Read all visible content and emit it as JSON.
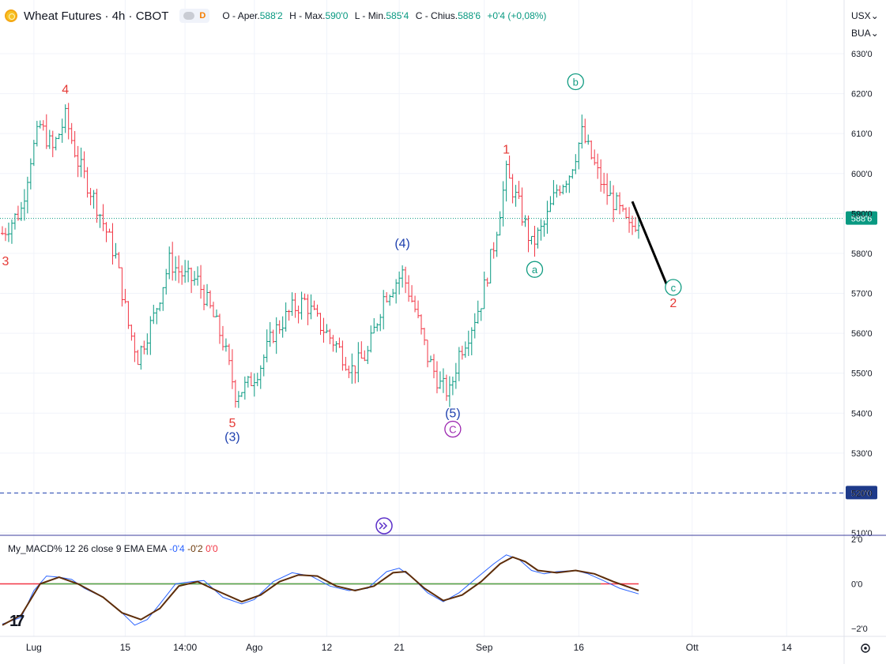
{
  "header": {
    "title": "Wheat Futures · 4h · CBOT",
    "badge": "D",
    "o_label": "O",
    "o_prefix": "Aper.",
    "o_value": "588'2",
    "h_label": "H",
    "h_prefix": "Max.",
    "h_value": "590'0",
    "l_label": "L",
    "l_prefix": "Min.",
    "l_value": "585'4",
    "c_label": "C",
    "c_prefix": "Chius.",
    "c_value": "588'6",
    "change": "+0'4 (+0,08%)"
  },
  "currency": {
    "unit": "USX",
    "unit2": "BUA"
  },
  "indicator": {
    "name": "My_MACD% 12 26 close 9 EMA EMA",
    "v1": "-0'4",
    "v2": "-0'2",
    "v3": "0'0"
  },
  "logo": "17",
  "colors": {
    "up": "#089981",
    "down": "#f23645",
    "wave_red": "#e53935",
    "wave_blue": "#1e40af",
    "wave_teal": "#119c82",
    "wave_purple": "#9c27b0",
    "macd": "#2962ff",
    "signal": "#5d2d0a"
  },
  "chart_data": [
    {
      "type": "ohlc",
      "price_axis": {
        "ticks": [
          "630'0",
          "620'0",
          "610'0",
          "600'0",
          "590'0",
          "580'0",
          "570'0",
          "560'0",
          "550'0",
          "540'0",
          "530'0",
          "520'0",
          "510'0"
        ],
        "min": 510,
        "max": 630
      },
      "x_axis": {
        "labels": [
          "Lug",
          "15",
          "14:00",
          "Ago",
          "12",
          "21",
          "Sep",
          "16",
          "Ott",
          "14"
        ],
        "bar_index": [
          10,
          39,
          58,
          80,
          103,
          126,
          153,
          183,
          219,
          249
        ]
      },
      "last_price": {
        "value": 588.75,
        "label": "588'6"
      },
      "alert_line": {
        "value": 520,
        "label": "520'0"
      },
      "close_path": [
        {
          "i": 0,
          "c": 585
        },
        {
          "i": 6,
          "c": 591
        },
        {
          "i": 9,
          "c": 604
        },
        {
          "i": 12,
          "c": 612
        },
        {
          "i": 16,
          "c": 606
        },
        {
          "i": 20,
          "c": 614
        },
        {
          "i": 24,
          "c": 603
        },
        {
          "i": 30,
          "c": 592
        },
        {
          "i": 36,
          "c": 579
        },
        {
          "i": 40,
          "c": 562
        },
        {
          "i": 43,
          "c": 554
        },
        {
          "i": 48,
          "c": 564
        },
        {
          "i": 53,
          "c": 578
        },
        {
          "i": 58,
          "c": 574
        },
        {
          "i": 62,
          "c": 573
        },
        {
          "i": 66,
          "c": 566
        },
        {
          "i": 70,
          "c": 558
        },
        {
          "i": 74,
          "c": 545
        },
        {
          "i": 78,
          "c": 547
        },
        {
          "i": 82,
          "c": 552
        },
        {
          "i": 86,
          "c": 560
        },
        {
          "i": 92,
          "c": 566
        },
        {
          "i": 96,
          "c": 568
        },
        {
          "i": 100,
          "c": 563
        },
        {
          "i": 106,
          "c": 557
        },
        {
          "i": 111,
          "c": 551
        },
        {
          "i": 116,
          "c": 555
        },
        {
          "i": 121,
          "c": 569
        },
        {
          "i": 127,
          "c": 575
        },
        {
          "i": 131,
          "c": 566
        },
        {
          "i": 135,
          "c": 554
        },
        {
          "i": 139,
          "c": 547
        },
        {
          "i": 142,
          "c": 545
        },
        {
          "i": 145,
          "c": 555
        },
        {
          "i": 148,
          "c": 560
        },
        {
          "i": 152,
          "c": 568
        },
        {
          "i": 156,
          "c": 582
        },
        {
          "i": 160,
          "c": 600
        },
        {
          "i": 164,
          "c": 592
        },
        {
          "i": 168,
          "c": 582
        },
        {
          "i": 172,
          "c": 587
        },
        {
          "i": 176,
          "c": 596
        },
        {
          "i": 180,
          "c": 600
        },
        {
          "i": 184,
          "c": 610
        },
        {
          "i": 187,
          "c": 604
        },
        {
          "i": 191,
          "c": 596
        },
        {
          "i": 195,
          "c": 592
        },
        {
          "i": 199,
          "c": 586
        },
        {
          "i": 202,
          "c": 588.75
        }
      ],
      "wave_labels": [
        {
          "text": "3",
          "i": 1,
          "p": 577,
          "style": "red"
        },
        {
          "text": "4",
          "i": 20,
          "p": 620,
          "style": "red"
        },
        {
          "text": "5",
          "i": 73,
          "p": 536.5,
          "style": "red"
        },
        {
          "text": "(3)",
          "i": 73,
          "p": 533,
          "style": "blue"
        },
        {
          "text": "(4)",
          "i": 127,
          "p": 581.5,
          "style": "blue"
        },
        {
          "text": "(5)",
          "i": 143,
          "p": 539,
          "style": "blue"
        },
        {
          "text": "C",
          "i": 143,
          "p": 535,
          "style": "purple-circle"
        },
        {
          "text": "1",
          "i": 160,
          "p": 605,
          "style": "red"
        },
        {
          "text": "a",
          "i": 169,
          "p": 575,
          "style": "teal-circle"
        },
        {
          "text": "b",
          "i": 182,
          "p": 622,
          "style": "teal-circle"
        },
        {
          "text": "c",
          "i": 213,
          "p": 570.5,
          "style": "teal-circle"
        },
        {
          "text": "2",
          "i": 213,
          "p": 566.5,
          "style": "red"
        }
      ],
      "projection": {
        "from": {
          "i": 200,
          "p": 593
        },
        "to": {
          "i": 211,
          "p": 572
        }
      }
    },
    {
      "type": "line",
      "name": "My_MACD%",
      "y_axis": {
        "ticks": [
          "2'0",
          "0'0",
          "−2'0"
        ],
        "min": -2.2,
        "max": 2.2
      },
      "zero_line": 0,
      "macd": [
        {
          "i": 0,
          "v": -1.8
        },
        {
          "i": 6,
          "v": -1.5
        },
        {
          "i": 10,
          "v": -0.3
        },
        {
          "i": 14,
          "v": 0.35
        },
        {
          "i": 18,
          "v": 0.3
        },
        {
          "i": 22,
          "v": 0.2
        },
        {
          "i": 26,
          "v": -0.2
        },
        {
          "i": 32,
          "v": -0.6
        },
        {
          "i": 38,
          "v": -1.3
        },
        {
          "i": 42,
          "v": -1.85
        },
        {
          "i": 46,
          "v": -1.6
        },
        {
          "i": 50,
          "v": -0.9
        },
        {
          "i": 55,
          "v": 0.0
        },
        {
          "i": 60,
          "v": 0.1
        },
        {
          "i": 64,
          "v": 0.15
        },
        {
          "i": 70,
          "v": -0.6
        },
        {
          "i": 76,
          "v": -0.9
        },
        {
          "i": 80,
          "v": -0.7
        },
        {
          "i": 86,
          "v": 0.1
        },
        {
          "i": 92,
          "v": 0.5
        },
        {
          "i": 98,
          "v": 0.35
        },
        {
          "i": 104,
          "v": -0.1
        },
        {
          "i": 110,
          "v": -0.3
        },
        {
          "i": 116,
          "v": -0.2
        },
        {
          "i": 122,
          "v": 0.55
        },
        {
          "i": 126,
          "v": 0.7
        },
        {
          "i": 130,
          "v": 0.3
        },
        {
          "i": 135,
          "v": -0.4
        },
        {
          "i": 140,
          "v": -0.8
        },
        {
          "i": 145,
          "v": -0.4
        },
        {
          "i": 150,
          "v": 0.2
        },
        {
          "i": 156,
          "v": 0.9
        },
        {
          "i": 160,
          "v": 1.3
        },
        {
          "i": 164,
          "v": 1.1
        },
        {
          "i": 168,
          "v": 0.6
        },
        {
          "i": 172,
          "v": 0.45
        },
        {
          "i": 176,
          "v": 0.55
        },
        {
          "i": 182,
          "v": 0.6
        },
        {
          "i": 186,
          "v": 0.45
        },
        {
          "i": 190,
          "v": 0.2
        },
        {
          "i": 196,
          "v": -0.2
        },
        {
          "i": 202,
          "v": -0.45
        }
      ],
      "signal": [
        {
          "i": 0,
          "v": -1.85
        },
        {
          "i": 6,
          "v": -1.4
        },
        {
          "i": 12,
          "v": 0.0
        },
        {
          "i": 18,
          "v": 0.3
        },
        {
          "i": 24,
          "v": 0.0
        },
        {
          "i": 32,
          "v": -0.6
        },
        {
          "i": 38,
          "v": -1.3
        },
        {
          "i": 44,
          "v": -1.6
        },
        {
          "i": 50,
          "v": -1.1
        },
        {
          "i": 56,
          "v": -0.1
        },
        {
          "i": 62,
          "v": 0.1
        },
        {
          "i": 68,
          "v": -0.3
        },
        {
          "i": 76,
          "v": -0.8
        },
        {
          "i": 82,
          "v": -0.5
        },
        {
          "i": 88,
          "v": 0.1
        },
        {
          "i": 94,
          "v": 0.4
        },
        {
          "i": 100,
          "v": 0.35
        },
        {
          "i": 106,
          "v": -0.1
        },
        {
          "i": 112,
          "v": -0.3
        },
        {
          "i": 118,
          "v": -0.1
        },
        {
          "i": 124,
          "v": 0.5
        },
        {
          "i": 128,
          "v": 0.55
        },
        {
          "i": 134,
          "v": -0.2
        },
        {
          "i": 140,
          "v": -0.75
        },
        {
          "i": 146,
          "v": -0.5
        },
        {
          "i": 152,
          "v": 0.1
        },
        {
          "i": 158,
          "v": 0.9
        },
        {
          "i": 162,
          "v": 1.2
        },
        {
          "i": 166,
          "v": 1.0
        },
        {
          "i": 170,
          "v": 0.6
        },
        {
          "i": 176,
          "v": 0.5
        },
        {
          "i": 182,
          "v": 0.6
        },
        {
          "i": 188,
          "v": 0.45
        },
        {
          "i": 194,
          "v": 0.1
        },
        {
          "i": 202,
          "v": -0.3
        }
      ]
    }
  ]
}
